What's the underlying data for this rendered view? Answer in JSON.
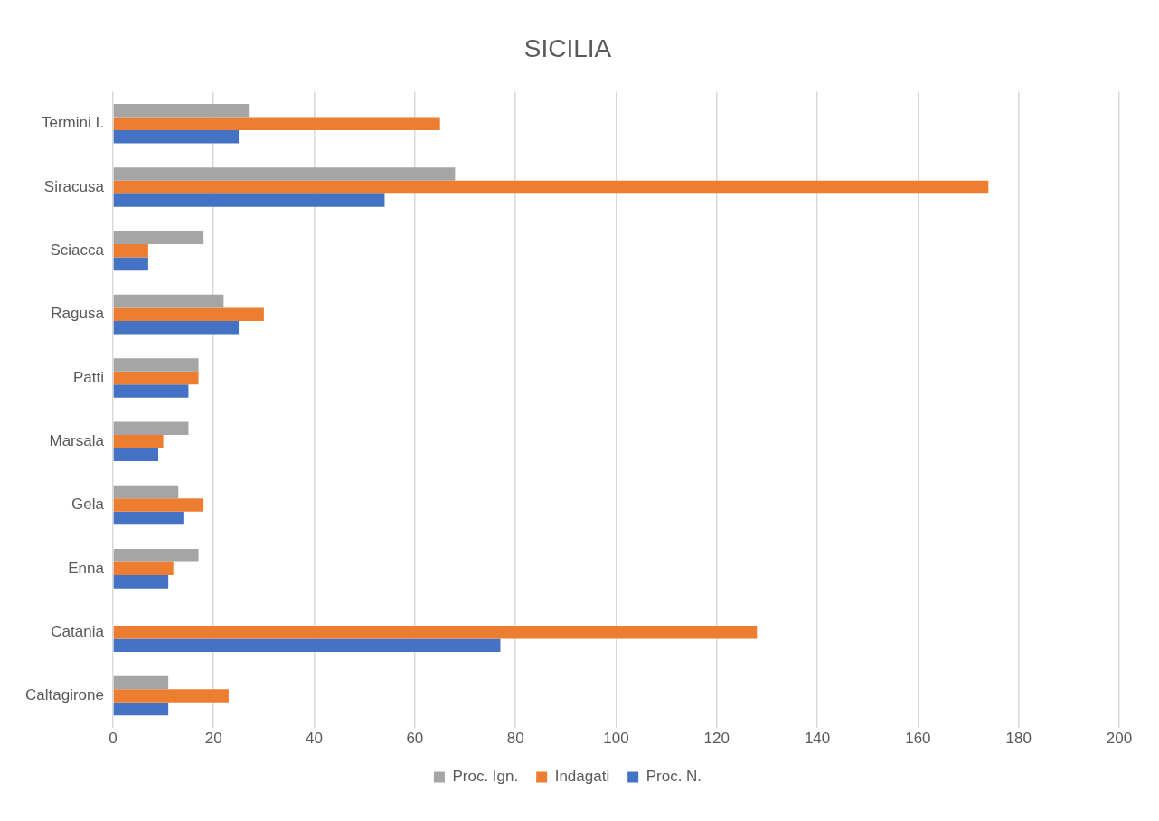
{
  "chart_data": {
    "type": "bar",
    "orientation": "horizontal",
    "title": "SICILIA",
    "categories": [
      "Termini I.",
      "Siracusa",
      "Sciacca",
      "Ragusa",
      "Patti",
      "Marsala",
      "Gela",
      "Enna",
      "Catania",
      "Caltagirone"
    ],
    "series": [
      {
        "name": "Proc. Ign.",
        "color": "#a5a5a5",
        "values": [
          27,
          68,
          18,
          22,
          17,
          15,
          13,
          17,
          0,
          11
        ]
      },
      {
        "name": "Indagati",
        "color": "#ed7d31",
        "values": [
          65,
          174,
          7,
          30,
          17,
          10,
          18,
          12,
          128,
          23
        ]
      },
      {
        "name": "Proc. N.",
        "color": "#4472c4",
        "values": [
          25,
          54,
          7,
          25,
          15,
          9,
          14,
          11,
          77,
          11
        ]
      }
    ],
    "xlim": [
      0,
      200
    ],
    "xticks": [
      0,
      20,
      40,
      60,
      80,
      100,
      120,
      140,
      160,
      180,
      200
    ],
    "grid": "x",
    "legend": "bottom"
  }
}
